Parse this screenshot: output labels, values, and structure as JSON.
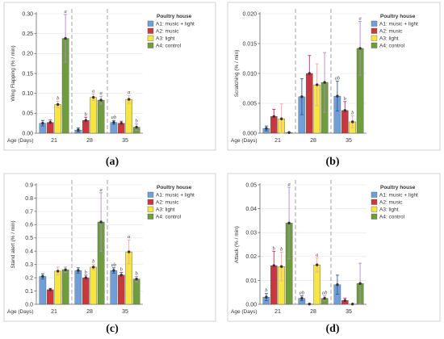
{
  "legend": {
    "title": "Poultry house",
    "entries": [
      "A1: music + light",
      "A2: music",
      "A3: light",
      "A4: control"
    ],
    "colors": [
      "#6f9fd6",
      "#c8393b",
      "#f5e642",
      "#6f9c3d"
    ],
    "errorbar_colors": [
      "#2a5a9a",
      "#c22c6c",
      "#f2a6a6",
      "#b18ad0"
    ]
  },
  "age_label": "Age (Days)",
  "chart_data": [
    {
      "type": "bar",
      "caption": "(a)",
      "ylabel": "Wing Flapping (% / min)",
      "ylim": [
        0,
        0.3
      ],
      "yticks": [
        "0.00",
        "0.05",
        "0.10",
        "0.15",
        "0.20",
        "0.25",
        "0.30"
      ],
      "categories": [
        "21",
        "28",
        "35"
      ],
      "series": [
        {
          "name": "A1: music + light",
          "values": [
            0.025,
            0.008,
            0.027
          ],
          "errors": [
            0.007,
            0.005,
            0.005
          ],
          "labels": [
            "",
            "",
            "ab"
          ]
        },
        {
          "name": "A2: music",
          "values": [
            0.027,
            0.032,
            0.025
          ],
          "errors": [
            0.006,
            0.008,
            0.005
          ],
          "labels": [
            "",
            "b",
            ""
          ]
        },
        {
          "name": "A3: light",
          "values": [
            0.072,
            0.09,
            0.085
          ],
          "errors": [
            0.008,
            0.008,
            0.01
          ],
          "labels": [
            "b",
            "a",
            "a"
          ]
        },
        {
          "name": "A4: control",
          "values": [
            0.238,
            0.083,
            0.015
          ],
          "errors": [
            0.06,
            0.01,
            0.008
          ],
          "labels": [
            "a",
            "a",
            "b"
          ]
        }
      ]
    },
    {
      "type": "bar",
      "caption": "(b)",
      "ylabel": "Scratching (% / min)",
      "ylim": [
        0,
        0.02
      ],
      "yticks": [
        "0.000",
        "0.005",
        "0.010",
        "0.015",
        "0.020"
      ],
      "categories": [
        "21",
        "28",
        "35"
      ],
      "series": [
        {
          "name": "A1: music + light",
          "values": [
            0.0008,
            0.0061,
            0.0062
          ],
          "errors": [
            0.0004,
            0.003,
            0.0025
          ],
          "labels": [
            "",
            "",
            "ab"
          ]
        },
        {
          "name": "A2: music",
          "values": [
            0.0028,
            0.01,
            0.0038
          ],
          "errors": [
            0.0012,
            0.003,
            0.0015
          ],
          "labels": [
            "",
            "",
            "b"
          ]
        },
        {
          "name": "A3: light",
          "values": [
            0.0024,
            0.0081,
            0.0019
          ],
          "errors": [
            0.0025,
            0.0035,
            0.001
          ],
          "labels": [
            "",
            "",
            "b"
          ]
        },
        {
          "name": "A4: control",
          "values": [
            0.0001,
            0.0085,
            0.0142
          ],
          "errors": [
            0.0001,
            0.005,
            0.0045
          ],
          "labels": [
            "",
            "",
            "a"
          ]
        }
      ]
    },
    {
      "type": "bar",
      "caption": "(c)",
      "ylabel": "Stand alert (% / min)",
      "ylim": [
        0,
        0.9
      ],
      "yticks": [
        "0.0",
        "0.1",
        "0.2",
        "0.3",
        "0.4",
        "0.5",
        "0.6",
        "0.7",
        "0.8",
        "0.9"
      ],
      "categories": [
        "21",
        "28",
        "35"
      ],
      "series": [
        {
          "name": "A1: music + light",
          "values": [
            0.21,
            0.255,
            0.255
          ],
          "errors": [
            0.02,
            0.02,
            0.02
          ],
          "labels": [
            "",
            "",
            "ab"
          ]
        },
        {
          "name": "A2: music",
          "values": [
            0.11,
            0.2,
            0.22
          ],
          "errors": [
            0.01,
            0.02,
            0.02
          ],
          "labels": [
            "",
            "b",
            "b"
          ]
        },
        {
          "name": "A3: light",
          "values": [
            0.25,
            0.28,
            0.395
          ],
          "errors": [
            0.03,
            0.02,
            0.09
          ],
          "labels": [
            "",
            "b",
            "a"
          ]
        },
        {
          "name": "A4: control",
          "values": [
            0.26,
            0.62,
            0.19
          ],
          "errors": [
            0.02,
            0.22,
            0.02
          ],
          "labels": [
            "",
            "a",
            "b"
          ]
        }
      ]
    },
    {
      "type": "bar",
      "caption": "(d)",
      "ylabel": "Attack (% / min)",
      "ylim": [
        0,
        0.05
      ],
      "yticks": [
        "0.00",
        "0.01",
        "0.02",
        "0.03",
        "0.04",
        "0.05"
      ],
      "categories": [
        "21",
        "28",
        "35"
      ],
      "series": [
        {
          "name": "A1: music + light",
          "values": [
            0.003,
            0.0025,
            0.0082
          ],
          "errors": [
            0.0015,
            0.001,
            0.004
          ],
          "labels": [
            "b",
            "ab",
            ""
          ]
        },
        {
          "name": "A2: music",
          "values": [
            0.0162,
            0.0001,
            0.0016
          ],
          "errors": [
            0.006,
            0.0001,
            0.001
          ],
          "labels": [
            "b",
            "",
            ""
          ]
        },
        {
          "name": "A3: light",
          "values": [
            0.0158,
            0.0165,
            0.0001
          ],
          "errors": [
            0.006,
            0.003,
            0.0001
          ],
          "labels": [
            "b",
            "a",
            ""
          ]
        },
        {
          "name": "A4: control",
          "values": [
            0.034,
            0.0025,
            0.0087
          ],
          "errors": [
            0.015,
            0.001,
            0.0085
          ],
          "labels": [
            "a",
            "ab",
            ""
          ]
        }
      ]
    }
  ]
}
